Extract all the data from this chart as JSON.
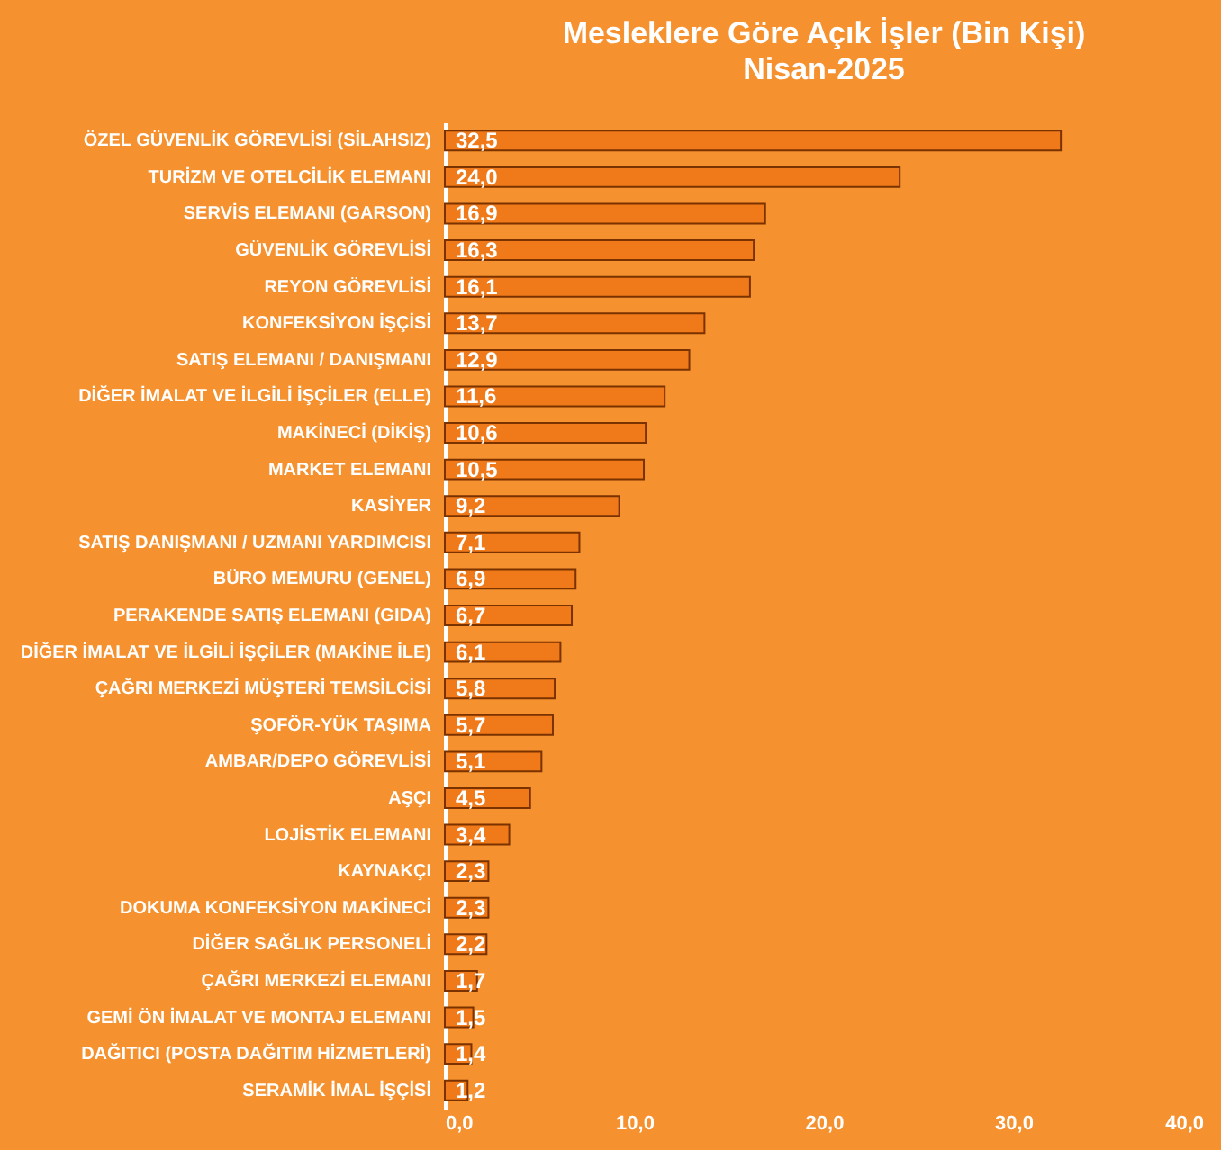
{
  "chart_data": {
    "type": "bar",
    "orientation": "horizontal",
    "title": "Mesleklere Göre Açık İşler  (Bin Kişi)",
    "subtitle": "Nisan-2025",
    "categories": [
      "ÖZEL GÜVENLİK GÖREVLİSİ (SİLAHSIZ)",
      "TURİZM VE OTELCİLİK ELEMANI",
      "SERVİS ELEMANI (GARSON)",
      "GÜVENLİK GÖREVLİSİ",
      "REYON GÖREVLİSİ",
      "KONFEKSİYON İŞÇİSİ",
      "SATIŞ ELEMANI / DANIŞMANI",
      "DİĞER İMALAT VE İLGİLİ İŞÇİLER (ELLE)",
      "MAKİNECİ (DİKİŞ)",
      "MARKET ELEMANI",
      "KASİYER",
      "SATIŞ DANIŞMANI / UZMANI YARDIMCISI",
      "BÜRO MEMURU (GENEL)",
      "PERAKENDE SATIŞ ELEMANI (GIDA)",
      "DİĞER İMALAT VE İLGİLİ İŞÇİLER (MAKİNE İLE)",
      "ÇAĞRI MERKEZİ MÜŞTERİ TEMSİLCİSİ",
      "ŞOFÖR-YÜK TAŞIMA",
      "AMBAR/DEPO GÖREVLİSİ",
      "AŞÇI",
      "LOJİSTİK ELEMANI",
      "KAYNAKÇI",
      "DOKUMA KONFEKSİYON MAKİNECİ",
      "DİĞER SAĞLIK PERSONELİ",
      "ÇAĞRI MERKEZİ ELEMANI",
      "GEMİ ÖN İMALAT VE MONTAJ ELEMANI",
      "DAĞITICI (POSTA DAĞITIM HİZMETLERİ)",
      "SERAMİK İMAL İŞÇİSİ"
    ],
    "values": [
      32.5,
      24.0,
      16.9,
      16.3,
      16.1,
      13.7,
      12.9,
      11.6,
      10.6,
      10.5,
      9.2,
      7.1,
      6.9,
      6.7,
      6.1,
      5.8,
      5.7,
      5.1,
      4.5,
      3.4,
      2.3,
      2.3,
      2.2,
      1.7,
      1.5,
      1.4,
      1.2
    ],
    "value_labels": [
      "32,5",
      "24,0",
      "16,9",
      "16,3",
      "16,1",
      "13,7",
      "12,9",
      "11,6",
      "10,6",
      "10,5",
      "9,2",
      "7,1",
      "6,9",
      "6,7",
      "6,1",
      "5,8",
      "5,7",
      "5,1",
      "4,5",
      "3,4",
      "2,3",
      "2,3",
      "2,2",
      "1,7",
      "1,5",
      "1,4",
      "1,2"
    ],
    "color": "#f07a1a",
    "xlim": [
      0,
      40
    ],
    "xticks": [
      {
        "value": 0,
        "label": "0,0"
      },
      {
        "value": 10,
        "label": "10,0"
      },
      {
        "value": 20,
        "label": "20,0"
      },
      {
        "value": 30,
        "label": "30,0"
      },
      {
        "value": 40,
        "label": "40,0"
      }
    ]
  }
}
